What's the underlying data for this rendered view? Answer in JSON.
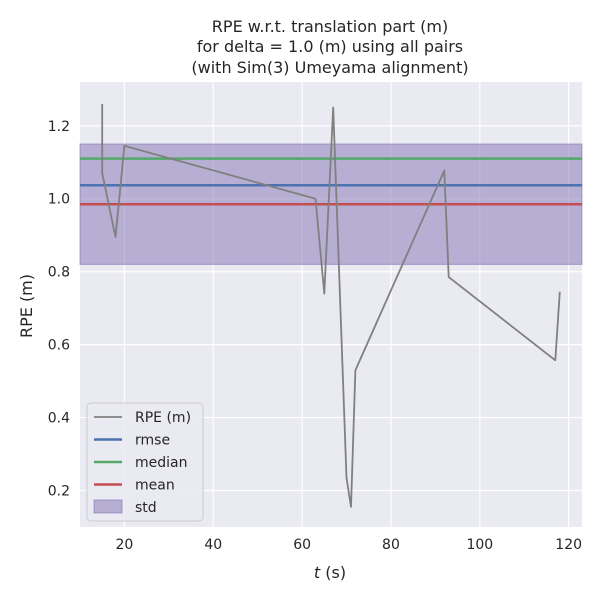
{
  "chart_data": {
    "type": "line",
    "title_lines": [
      "RPE w.r.t. translation part (m)",
      "for delta = 1.0 (m) using all pairs",
      "(with Sim(3) Umeyama alignment)"
    ],
    "xlabel_var": "t",
    "xlabel_unit": " (s)",
    "ylabel": "RPE (m)",
    "xlim": [
      10,
      123
    ],
    "ylim": [
      0.1,
      1.32
    ],
    "xticks": [
      20,
      40,
      60,
      80,
      100,
      120
    ],
    "yticks": [
      0.2,
      0.4,
      0.6,
      0.8,
      1.0,
      1.2
    ],
    "xtick_labels": [
      "20",
      "40",
      "60",
      "80",
      "100",
      "120"
    ],
    "ytick_labels": [
      "0.2",
      "0.4",
      "0.6",
      "0.8",
      "1.0",
      "1.2"
    ],
    "grid": true,
    "legend_position": "lower-left",
    "series": [
      {
        "name": "RPE (m)",
        "color": "#808080",
        "x": [
          15,
          15,
          15,
          18,
          20,
          63,
          65,
          67,
          70,
          71,
          72,
          92,
          93,
          117,
          118
        ],
        "y": [
          1.26,
          1.09,
          1.07,
          0.895,
          1.145,
          1.0,
          0.74,
          1.25,
          0.235,
          0.155,
          0.53,
          1.077,
          0.785,
          0.557,
          0.745
        ]
      }
    ],
    "stats": {
      "rmse": {
        "name": "rmse",
        "value": 1.037,
        "color": "#4c72b0"
      },
      "median": {
        "name": "median",
        "value": 1.11,
        "color": "#55a868"
      },
      "mean": {
        "name": "mean",
        "value": 0.985,
        "color": "#c44e52"
      },
      "std": {
        "name": "std",
        "lower": 0.82,
        "upper": 1.15,
        "color": "#8172b3"
      }
    },
    "legend_entries": [
      "RPE (m)",
      "rmse",
      "median",
      "mean",
      "std"
    ]
  }
}
